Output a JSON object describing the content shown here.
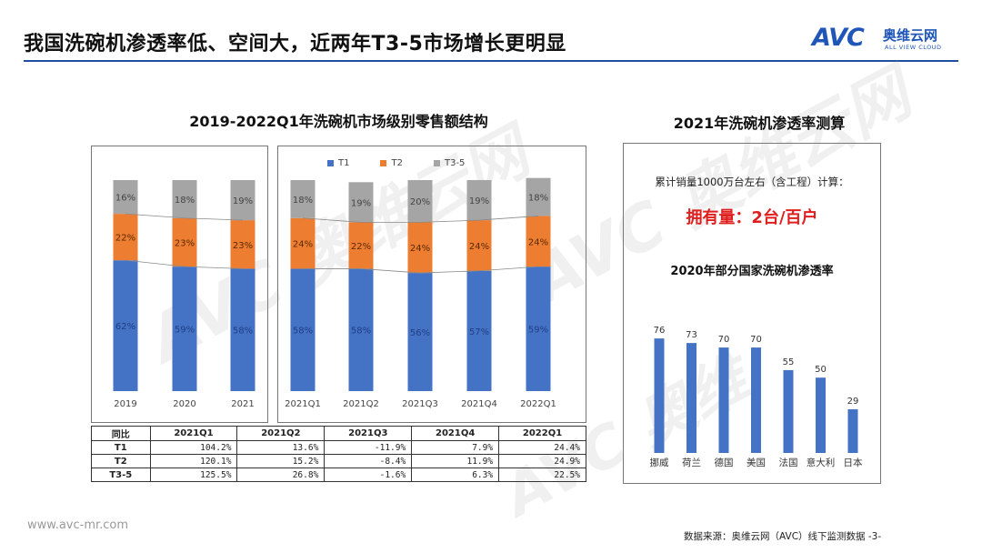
{
  "header": {
    "title": "我国洗碗机渗透率低、空间大，近两年T3-5市场增长更明显",
    "logo_mark": "AVC",
    "logo_cn": "奥维云网",
    "logo_en": "ALL VIEW CLOUD"
  },
  "colors": {
    "T1": "#4472c4",
    "T2": "#ed7d31",
    "T3-5": "#a5a5a5",
    "bar_blue": "#4472c4",
    "accent_red": "#e01e1e",
    "rule_blue": "#1f4fa0"
  },
  "chart_data": [
    {
      "type": "bar",
      "stacked": true,
      "percent": true,
      "title": "2019-2022Q1年洗碗机市场级别零售额结构",
      "categories": [
        "2019",
        "2020",
        "2021",
        "2021Q1",
        "2021Q2",
        "2021Q3",
        "2021Q4",
        "2022Q1"
      ],
      "series": [
        {
          "name": "T1",
          "values": [
            62,
            59,
            58,
            58,
            58,
            56,
            57,
            59
          ]
        },
        {
          "name": "T2",
          "values": [
            22,
            23,
            23,
            24,
            22,
            24,
            24,
            24
          ]
        },
        {
          "name": "T3-5",
          "values": [
            16,
            18,
            19,
            18,
            19,
            20,
            19,
            18
          ]
        }
      ],
      "labels": {
        "T1": [
          "62%",
          "59%",
          "58%",
          "58%",
          "58%",
          "56%",
          "57%",
          "59%"
        ],
        "T2": [
          "22%",
          "23%",
          "23%",
          "24%",
          "22%",
          "24%",
          "24%",
          "24%"
        ],
        "T3-5": [
          "16%",
          "18%",
          "19%",
          "18%",
          "19%",
          "20%",
          "19%",
          "18%"
        ]
      },
      "legend": [
        "T1",
        "T2",
        "T3-5"
      ],
      "ylim": [
        0,
        100
      ]
    },
    {
      "type": "bar",
      "title": "2020年部分国家洗碗机渗透率",
      "categories": [
        "挪威",
        "荷兰",
        "德国",
        "美国",
        "法国",
        "意大利",
        "日本"
      ],
      "values": [
        76,
        73,
        70,
        70,
        55,
        50,
        29
      ],
      "ylim": [
        0,
        100
      ]
    }
  ],
  "yoy_table": {
    "headers": [
      "同比",
      "2021Q1",
      "2021Q2",
      "2021Q3",
      "2021Q4",
      "2022Q1"
    ],
    "rows": [
      [
        "T1",
        "104.2%",
        "13.6%",
        "-11.9%",
        "7.9%",
        "24.4%"
      ],
      [
        "T2",
        "120.1%",
        "15.2%",
        "-8.4%",
        "11.9%",
        "24.9%"
      ],
      [
        "T3-5",
        "125.5%",
        "26.8%",
        "-1.6%",
        "6.3%",
        "22.5%"
      ]
    ]
  },
  "right_panel": {
    "title": "2021年洗碗机渗透率测算",
    "calc_note": "累计销量1000万台左右（含工程）计算：",
    "ownership": "拥有量：2台/百户"
  },
  "footer": {
    "url": "www.avc-mr.com",
    "source": "数据来源：奥维云网（AVC）线下监测数据  -3-"
  }
}
